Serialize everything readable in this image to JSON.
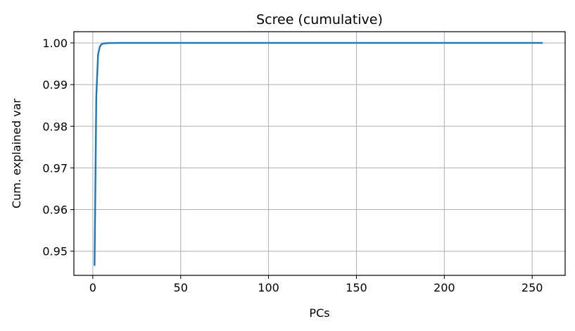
{
  "chart_data": {
    "type": "line",
    "title": "Scree (cumulative)",
    "xlabel": "PCs",
    "ylabel": "Cum. explained var",
    "xlim": [
      -10.75,
      268.75
    ],
    "ylim": [
      0.9442,
      1.0027
    ],
    "xticks": [
      0,
      50,
      100,
      150,
      200,
      250
    ],
    "xtick_labels": [
      "0",
      "50",
      "100",
      "150",
      "200",
      "250"
    ],
    "yticks": [
      0.95,
      0.96,
      0.97,
      0.98,
      0.99,
      1.0
    ],
    "ytick_labels": [
      "0.95",
      "0.96",
      "0.97",
      "0.98",
      "0.99",
      "1.00"
    ],
    "grid": true,
    "series": [
      {
        "color": "#1f77b4",
        "x": [
          1,
          2,
          3,
          4,
          5,
          6,
          7,
          8,
          10,
          12,
          15,
          20,
          30,
          50,
          100,
          150,
          200,
          256
        ],
        "y": [
          0.9465,
          0.9872,
          0.9972,
          0.9991,
          0.9997,
          0.99985,
          0.99991,
          0.99995,
          0.99998,
          0.99999,
          1.0,
          1.0,
          1.0,
          1.0,
          1.0,
          1.0,
          1.0,
          1.0
        ]
      }
    ]
  }
}
